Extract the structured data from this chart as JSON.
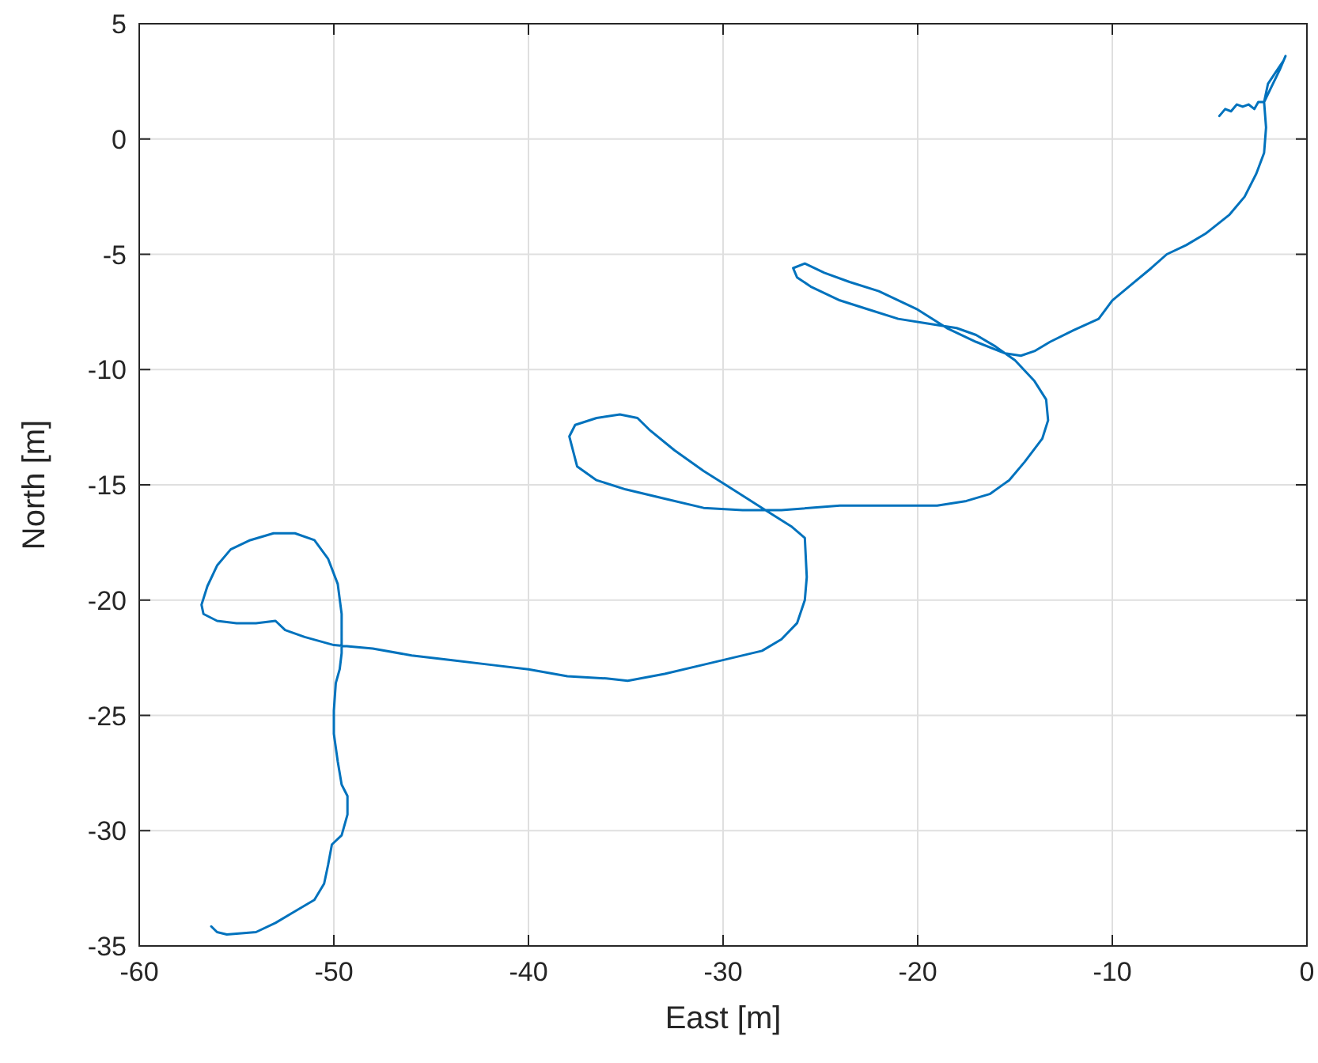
{
  "chart_data": {
    "type": "line",
    "xlabel": "East [m]",
    "ylabel": "North [m]",
    "xlim": [
      -60,
      0
    ],
    "ylim": [
      -35,
      5
    ],
    "xticks": [
      -60,
      -50,
      -40,
      -30,
      -20,
      -10,
      0
    ],
    "yticks": [
      -35,
      -30,
      -25,
      -20,
      -15,
      -10,
      -5,
      0,
      5
    ],
    "grid": true,
    "line_style": "solid",
    "marker": "none",
    "series": [
      {
        "color": "#0072bd",
        "x": [
          -4.5,
          -4.2,
          -3.9,
          -3.6,
          -3.3,
          -3.0,
          -2.7,
          -2.5,
          -2.2,
          -1.8,
          -1.4,
          -1.1,
          -1.2,
          -1.6,
          -2.0,
          -2.2,
          -2.1,
          -2.2,
          -2.6,
          -3.2,
          -4.0,
          -5.2,
          -6.2,
          -7.2,
          -8.0,
          -9.0,
          -10.0,
          -10.7,
          -12.0,
          -13.2,
          -14.0,
          -14.7,
          -15.5,
          -17.0,
          -18.5,
          -20.0,
          -22.0,
          -23.5,
          -24.8,
          -25.8,
          -26.4,
          -26.2,
          -25.5,
          -24.0,
          -22.5,
          -21.0,
          -19.5,
          -18.0,
          -17.0,
          -16.0,
          -15.0,
          -14.0,
          -13.4,
          -13.3,
          -13.6,
          -14.5,
          -15.3,
          -16.3,
          -17.5,
          -19.0,
          -21.0,
          -24.0,
          -27.0,
          -29.0,
          -31.0,
          -33.0,
          -35.0,
          -36.5,
          -37.5,
          -37.9,
          -37.6,
          -36.5,
          -35.3,
          -34.4,
          -33.8,
          -32.5,
          -31.0,
          -29.5,
          -28.0,
          -26.5,
          -25.8,
          -25.7,
          -25.8,
          -26.2,
          -27.0,
          -28.0,
          -29.5,
          -31.0,
          -33.0,
          -34.9,
          -36.0,
          -38.0,
          -40.0,
          -42.0,
          -44.0,
          -46.0,
          -48.0,
          -50.0,
          -51.5,
          -52.5,
          -53.0,
          -54.0,
          -55.0,
          -56.0,
          -56.7,
          -56.8,
          -56.5,
          -56.0,
          -55.3,
          -54.3,
          -53.1,
          -52.0,
          -51.0,
          -50.3,
          -49.8,
          -49.6,
          -49.6,
          -49.7,
          -49.9,
          -50.0,
          -50.0,
          -49.8,
          -49.6,
          -49.3,
          -49.3,
          -49.6,
          -50.1,
          -50.3,
          -50.5,
          -51.0,
          -52.0,
          -53.0,
          -54.0,
          -55.5,
          -56.0,
          -56.3
        ],
        "values": [
          1.0,
          1.3,
          1.2,
          1.5,
          1.4,
          1.5,
          1.3,
          1.6,
          1.6,
          2.3,
          3.0,
          3.6,
          3.4,
          2.9,
          2.4,
          1.6,
          0.5,
          -0.6,
          -1.5,
          -2.5,
          -3.3,
          -4.1,
          -4.6,
          -5.0,
          -5.6,
          -6.3,
          -7.0,
          -7.8,
          -8.3,
          -8.8,
          -9.2,
          -9.4,
          -9.3,
          -8.8,
          -8.2,
          -7.4,
          -6.6,
          -6.2,
          -5.8,
          -5.4,
          -5.6,
          -6.0,
          -6.4,
          -7.0,
          -7.4,
          -7.8,
          -8.0,
          -8.2,
          -8.5,
          -9.0,
          -9.6,
          -10.5,
          -11.3,
          -12.2,
          -13.0,
          -14.0,
          -14.8,
          -15.4,
          -15.7,
          -15.9,
          -15.9,
          -15.9,
          -16.1,
          -16.1,
          -16.0,
          -15.6,
          -15.2,
          -14.8,
          -14.2,
          -12.9,
          -12.4,
          -12.1,
          -11.95,
          -12.1,
          -12.6,
          -13.5,
          -14.4,
          -15.2,
          -16.0,
          -16.8,
          -17.3,
          -19.0,
          -20.0,
          -21.0,
          -21.7,
          -22.2,
          -22.5,
          -22.8,
          -23.2,
          -23.5,
          -23.4,
          -23.3,
          -23.0,
          -22.8,
          -22.6,
          -22.4,
          -22.1,
          -21.95,
          -21.6,
          -21.3,
          -20.9,
          -21.0,
          -21.0,
          -20.9,
          -20.6,
          -20.2,
          -19.4,
          -18.5,
          -17.8,
          -17.4,
          -17.1,
          -17.1,
          -17.4,
          -18.2,
          -19.3,
          -20.6,
          -22.3,
          -23.0,
          -23.6,
          -24.8,
          -25.8,
          -27.0,
          -28.0,
          -28.5,
          -29.3,
          -30.2,
          -30.6,
          -31.5,
          -32.3,
          -33.0,
          -33.5,
          -34.0,
          -34.4,
          -34.5,
          -34.4,
          -34.15
        ]
      }
    ]
  }
}
